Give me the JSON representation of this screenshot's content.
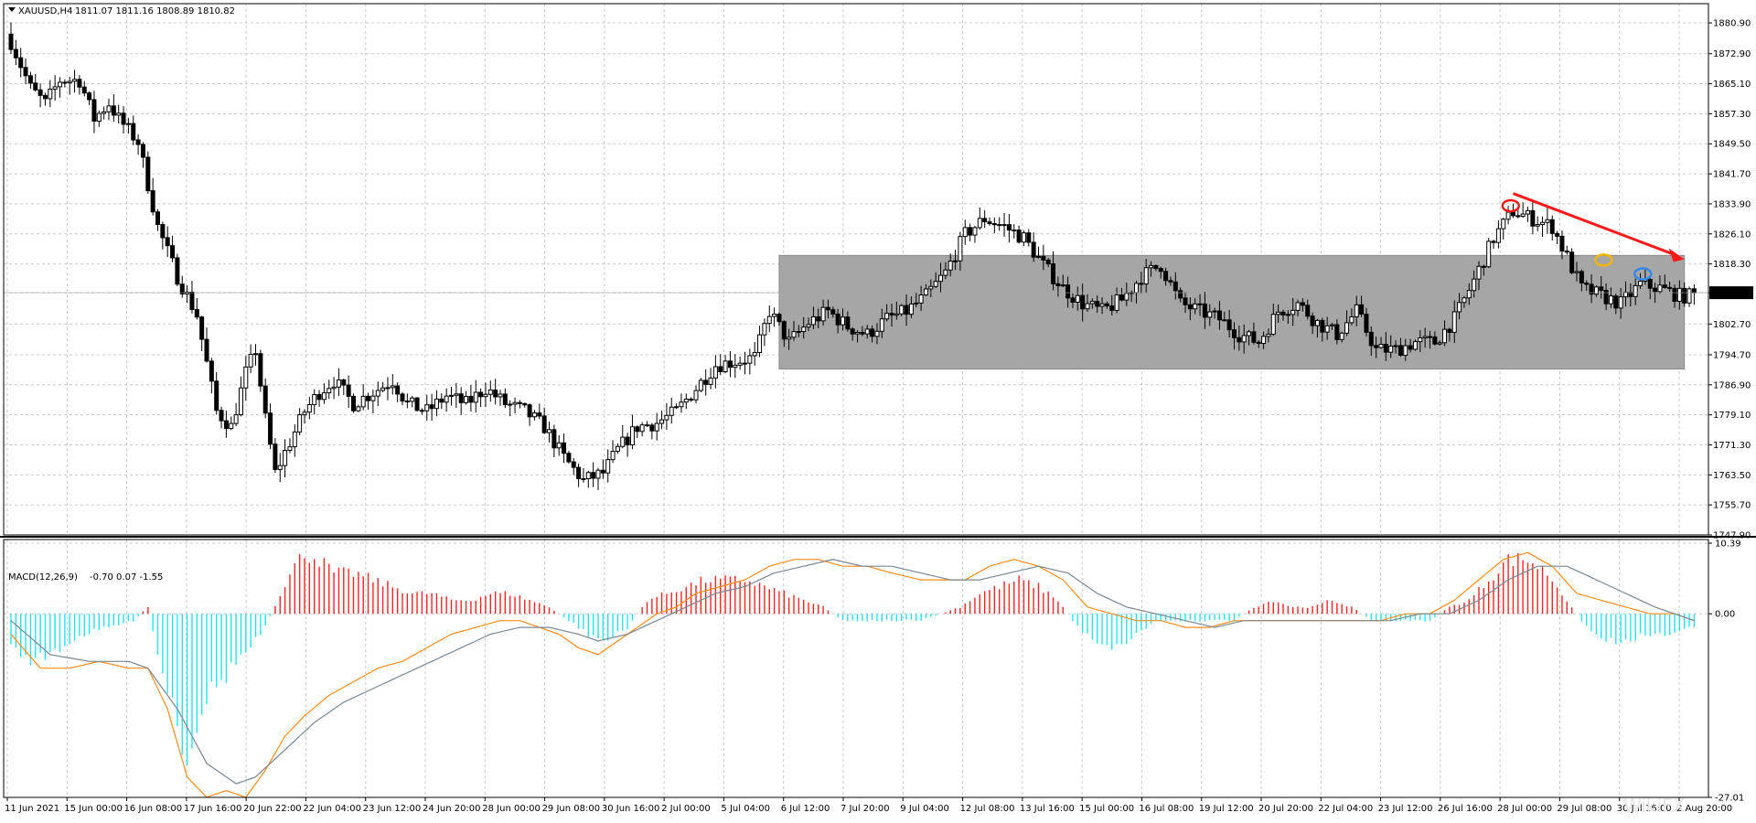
{
  "header": {
    "symbol": "XAUUSD,H4",
    "quote": "1811.07 1811.16 1808.89 1810.82"
  },
  "macd_header": {
    "label": "MACD(12,26,9)",
    "values": "-0.70 0.07 -1.55"
  },
  "price_tag": "1810.82",
  "watermark": "WikiFX",
  "colors": {
    "background": "#ffffff",
    "grid": "#c8c8c8",
    "candle": "#000000",
    "zone": "#a6a6a6",
    "hist_pos": "#ff2020",
    "hist_neg": "#22e4f0",
    "macd_line": "#ff8c1a",
    "signal_line": "#7a8790",
    "arrow": "#ff1a1a",
    "marker_red": "#ff1a1a",
    "marker_orange": "#f5b400",
    "marker_blue": "#3388ee"
  },
  "chart_data": [
    {
      "type": "candlestick",
      "title": "XAUUSD,H4",
      "price_axis_ticks": [
        "1880.90",
        "1872.90",
        "1865.10",
        "1857.30",
        "1849.50",
        "1841.70",
        "1833.90",
        "1826.10",
        "1818.30",
        "1810.82",
        "1802.70",
        "1794.70",
        "1786.90",
        "1779.10",
        "1771.30",
        "1763.50",
        "1755.70",
        "1747.90"
      ],
      "ylim": [
        1747.9,
        1884
      ],
      "time_axis_ticks": [
        "11 Jun 2021",
        "15 Jun 00:00",
        "16 Jun 08:00",
        "17 Jun 16:00",
        "20 Jun 22:00",
        "22 Jun 04:00",
        "23 Jun 12:00",
        "24 Jun 20:00",
        "28 Jun 00:00",
        "29 Jun 08:00",
        "30 Jun 16:00",
        "2 Jul 00:00",
        "5 Jul 04:00",
        "6 Jul 12:00",
        "7 Jul 20:00",
        "9 Jul 04:00",
        "12 Jul 08:00",
        "13 Jul 16:00",
        "15 Jul 00:00",
        "16 Jul 08:00",
        "19 Jul 12:00",
        "20 Jul 20:00",
        "22 Jul 04:00",
        "23 Jul 12:00",
        "26 Jul 16:00",
        "28 Jul 00:00",
        "29 Jul 08:00",
        "30 Jul 16:00",
        "2 Aug 20:00"
      ],
      "close_anchors": [
        [
          0,
          1876
        ],
        [
          4,
          1864
        ],
        [
          7,
          1860
        ],
        [
          10,
          1866
        ],
        [
          14,
          1866
        ],
        [
          17,
          1856
        ],
        [
          20,
          1860
        ],
        [
          22,
          1856
        ],
        [
          26,
          1850
        ],
        [
          30,
          1828
        ],
        [
          34,
          1815
        ],
        [
          38,
          1805
        ],
        [
          42,
          1780
        ],
        [
          45,
          1776
        ],
        [
          48,
          1790
        ],
        [
          50,
          1796
        ],
        [
          52,
          1778
        ],
        [
          54,
          1764
        ],
        [
          57,
          1772
        ],
        [
          60,
          1780
        ],
        [
          63,
          1785
        ],
        [
          66,
          1788
        ],
        [
          70,
          1782
        ],
        [
          74,
          1785
        ],
        [
          78,
          1788
        ],
        [
          81,
          1782
        ],
        [
          85,
          1780
        ],
        [
          89,
          1784
        ],
        [
          93,
          1782
        ],
        [
          97,
          1786
        ],
        [
          101,
          1782
        ],
        [
          105,
          1780
        ],
        [
          109,
          1776
        ],
        [
          113,
          1768
        ],
        [
          117,
          1762
        ],
        [
          121,
          1764
        ],
        [
          124,
          1770
        ],
        [
          128,
          1776
        ],
        [
          132,
          1777
        ],
        [
          136,
          1780
        ],
        [
          140,
          1786
        ],
        [
          144,
          1792
        ],
        [
          148,
          1793
        ],
        [
          152,
          1794
        ],
        [
          155,
          1806
        ],
        [
          159,
          1798
        ],
        [
          163,
          1803
        ],
        [
          167,
          1806
        ],
        [
          171,
          1802
        ],
        [
          175,
          1800
        ],
        [
          179,
          1804
        ],
        [
          183,
          1806
        ],
        [
          187,
          1810
        ],
        [
          191,
          1816
        ],
        [
          195,
          1826
        ],
        [
          199,
          1830
        ],
        [
          203,
          1828
        ],
        [
          207,
          1825
        ],
        [
          211,
          1818
        ],
        [
          215,
          1812
        ],
        [
          219,
          1808
        ],
        [
          223,
          1806
        ],
        [
          227,
          1809
        ],
        [
          231,
          1815
        ],
        [
          235,
          1818
        ],
        [
          239,
          1808
        ],
        [
          243,
          1806
        ],
        [
          247,
          1804
        ],
        [
          251,
          1800
        ],
        [
          255,
          1798
        ],
        [
          259,
          1806
        ],
        [
          263,
          1808
        ],
        [
          267,
          1803
        ],
        [
          271,
          1800
        ],
        [
          275,
          1806
        ],
        [
          279,
          1796
        ],
        [
          283,
          1796
        ],
        [
          287,
          1798
        ],
        [
          291,
          1798
        ],
        [
          295,
          1804
        ],
        [
          299,
          1814
        ],
        [
          303,
          1825
        ],
        [
          307,
          1832
        ],
        [
          311,
          1830
        ],
        [
          315,
          1828
        ],
        [
          318,
          1820
        ],
        [
          321,
          1812
        ],
        [
          325,
          1810
        ],
        [
          329,
          1808
        ],
        [
          333,
          1813
        ],
        [
          337,
          1812
        ],
        [
          341,
          1810
        ],
        [
          344,
          1810
        ]
      ],
      "candle_count": 345,
      "last_close": 1810.82,
      "annotations": [
        "grey consolidation zone ~1791–1820 from 6 Jul to 2 Aug",
        "red downward arrow from 29 Jul peak toward 2 Aug",
        "red circle at 29 Jul high",
        "orange circle at 30 Jul",
        "blue circle at 2 Aug"
      ]
    },
    {
      "type": "macd",
      "title": "MACD(12,26,9)",
      "axis_ticks": [
        "10.39",
        "0.00",
        "-27.01"
      ],
      "ylim": [
        -27.01,
        10.39
      ],
      "histogram_anchors": [
        [
          0,
          -5
        ],
        [
          5,
          -7
        ],
        [
          10,
          -5
        ],
        [
          15,
          -3
        ],
        [
          20,
          -2
        ],
        [
          25,
          -1
        ],
        [
          28,
          1
        ],
        [
          30,
          -6
        ],
        [
          33,
          -13
        ],
        [
          36,
          -21
        ],
        [
          38,
          -16
        ],
        [
          40,
          -12
        ],
        [
          43,
          -10
        ],
        [
          46,
          -7
        ],
        [
          49,
          -5
        ],
        [
          52,
          -2
        ],
        [
          55,
          3
        ],
        [
          58,
          7
        ],
        [
          60,
          9
        ],
        [
          63,
          8
        ],
        [
          66,
          6
        ],
        [
          70,
          6
        ],
        [
          74,
          5
        ],
        [
          78,
          4
        ],
        [
          82,
          3
        ],
        [
          86,
          3
        ],
        [
          90,
          2
        ],
        [
          94,
          2
        ],
        [
          98,
          3
        ],
        [
          102,
          3
        ],
        [
          106,
          2
        ],
        [
          110,
          1
        ],
        [
          114,
          -1
        ],
        [
          118,
          -3
        ],
        [
          122,
          -4
        ],
        [
          126,
          -2
        ],
        [
          130,
          2
        ],
        [
          134,
          3
        ],
        [
          138,
          4
        ],
        [
          142,
          5
        ],
        [
          146,
          5
        ],
        [
          150,
          5
        ],
        [
          154,
          4
        ],
        [
          158,
          3
        ],
        [
          162,
          2
        ],
        [
          166,
          1
        ],
        [
          170,
          -1
        ],
        [
          174,
          -1
        ],
        [
          178,
          -1
        ],
        [
          182,
          -1
        ],
        [
          186,
          -1
        ],
        [
          190,
          0
        ],
        [
          194,
          1
        ],
        [
          198,
          3
        ],
        [
          202,
          4
        ],
        [
          206,
          5
        ],
        [
          210,
          4
        ],
        [
          214,
          2
        ],
        [
          218,
          -2
        ],
        [
          222,
          -4
        ],
        [
          226,
          -5
        ],
        [
          230,
          -3
        ],
        [
          234,
          -1
        ],
        [
          238,
          -1
        ],
        [
          242,
          -1
        ],
        [
          246,
          -1
        ],
        [
          250,
          -1
        ],
        [
          254,
          1
        ],
        [
          258,
          2
        ],
        [
          262,
          1
        ],
        [
          266,
          1
        ],
        [
          270,
          2
        ],
        [
          274,
          1
        ],
        [
          278,
          -1
        ],
        [
          282,
          -1
        ],
        [
          286,
          -1
        ],
        [
          290,
          -1
        ],
        [
          294,
          1
        ],
        [
          298,
          2
        ],
        [
          302,
          5
        ],
        [
          306,
          8
        ],
        [
          310,
          8
        ],
        [
          314,
          6
        ],
        [
          318,
          2
        ],
        [
          322,
          -2
        ],
        [
          326,
          -4
        ],
        [
          330,
          -4
        ],
        [
          334,
          -3
        ],
        [
          338,
          -3
        ],
        [
          342,
          -2
        ],
        [
          344,
          -2
        ]
      ],
      "macd_anchors": [
        [
          0,
          -3
        ],
        [
          6,
          -8
        ],
        [
          12,
          -8
        ],
        [
          18,
          -7
        ],
        [
          24,
          -8
        ],
        [
          28,
          -8
        ],
        [
          32,
          -14
        ],
        [
          36,
          -24
        ],
        [
          40,
          -27
        ],
        [
          44,
          -26
        ],
        [
          48,
          -27
        ],
        [
          52,
          -23
        ],
        [
          56,
          -18
        ],
        [
          60,
          -15
        ],
        [
          65,
          -12
        ],
        [
          70,
          -10
        ],
        [
          75,
          -8
        ],
        [
          80,
          -7
        ],
        [
          85,
          -5
        ],
        [
          90,
          -3
        ],
        [
          95,
          -2
        ],
        [
          100,
          -1
        ],
        [
          104,
          -1
        ],
        [
          108,
          -2
        ],
        [
          112,
          -3
        ],
        [
          116,
          -5
        ],
        [
          120,
          -6
        ],
        [
          124,
          -4
        ],
        [
          128,
          -2
        ],
        [
          132,
          0
        ],
        [
          136,
          1
        ],
        [
          140,
          3
        ],
        [
          145,
          4
        ],
        [
          150,
          5
        ],
        [
          155,
          7
        ],
        [
          160,
          8
        ],
        [
          165,
          8
        ],
        [
          170,
          7
        ],
        [
          175,
          7
        ],
        [
          180,
          6
        ],
        [
          186,
          5
        ],
        [
          190,
          5
        ],
        [
          195,
          5
        ],
        [
          200,
          7
        ],
        [
          205,
          8
        ],
        [
          210,
          7
        ],
        [
          215,
          5
        ],
        [
          220,
          1
        ],
        [
          225,
          0
        ],
        [
          230,
          -1
        ],
        [
          235,
          -1
        ],
        [
          240,
          -2
        ],
        [
          245,
          -2
        ],
        [
          250,
          -1
        ],
        [
          255,
          -1
        ],
        [
          260,
          -1
        ],
        [
          265,
          -1
        ],
        [
          270,
          -1
        ],
        [
          275,
          -1
        ],
        [
          280,
          -1
        ],
        [
          285,
          0
        ],
        [
          290,
          0
        ],
        [
          295,
          2
        ],
        [
          300,
          5
        ],
        [
          305,
          8
        ],
        [
          310,
          9
        ],
        [
          315,
          7
        ],
        [
          320,
          3
        ],
        [
          325,
          2
        ],
        [
          330,
          1
        ],
        [
          335,
          0
        ],
        [
          340,
          0
        ],
        [
          344,
          -1
        ]
      ],
      "signal_anchors": [
        [
          0,
          -1
        ],
        [
          8,
          -6
        ],
        [
          16,
          -7
        ],
        [
          24,
          -7
        ],
        [
          28,
          -8
        ],
        [
          34,
          -14
        ],
        [
          40,
          -22
        ],
        [
          46,
          -25
        ],
        [
          50,
          -24
        ],
        [
          56,
          -20
        ],
        [
          62,
          -16
        ],
        [
          68,
          -13
        ],
        [
          74,
          -11
        ],
        [
          80,
          -9
        ],
        [
          86,
          -7
        ],
        [
          92,
          -5
        ],
        [
          98,
          -3
        ],
        [
          104,
          -2
        ],
        [
          110,
          -2
        ],
        [
          116,
          -3
        ],
        [
          120,
          -4
        ],
        [
          126,
          -3
        ],
        [
          132,
          -1
        ],
        [
          138,
          1
        ],
        [
          144,
          3
        ],
        [
          150,
          4
        ],
        [
          156,
          6
        ],
        [
          162,
          7
        ],
        [
          168,
          8
        ],
        [
          174,
          7
        ],
        [
          180,
          7
        ],
        [
          186,
          6
        ],
        [
          192,
          5
        ],
        [
          198,
          5
        ],
        [
          204,
          6
        ],
        [
          210,
          7
        ],
        [
          216,
          6
        ],
        [
          222,
          3
        ],
        [
          228,
          1
        ],
        [
          234,
          0
        ],
        [
          240,
          -1
        ],
        [
          246,
          -2
        ],
        [
          252,
          -1
        ],
        [
          258,
          -1
        ],
        [
          264,
          -1
        ],
        [
          270,
          -1
        ],
        [
          276,
          -1
        ],
        [
          282,
          -1
        ],
        [
          288,
          0
        ],
        [
          294,
          0
        ],
        [
          300,
          2
        ],
        [
          306,
          5
        ],
        [
          312,
          7
        ],
        [
          318,
          7
        ],
        [
          324,
          5
        ],
        [
          330,
          3
        ],
        [
          336,
          1
        ],
        [
          340,
          0
        ],
        [
          344,
          -1
        ]
      ]
    }
  ]
}
